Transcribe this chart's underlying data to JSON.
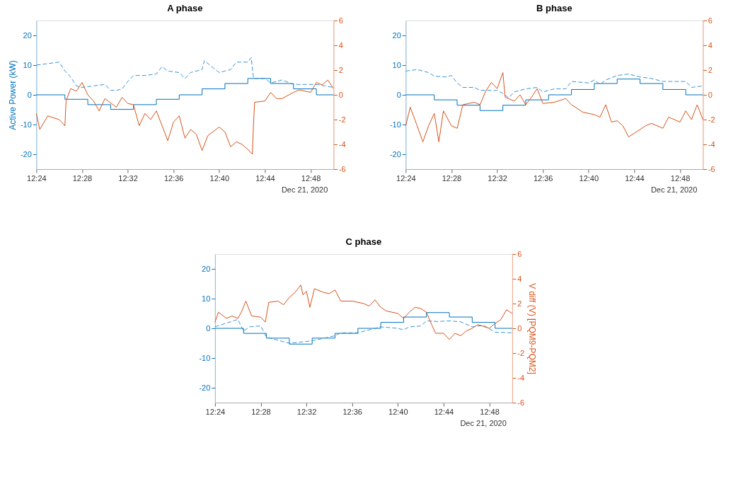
{
  "chart_data": [
    {
      "type": "line",
      "title": "A phase",
      "ylabel": "Active Power (kW)",
      "annotations": [
        "Dec 21, 2020"
      ],
      "xlim": [
        "2020-12-21T12:24",
        "2020-12-21T12:50"
      ],
      "xticks": [
        {
          "value": "2020-12-21T12:24",
          "label": "12:24"
        },
        {
          "value": "2020-12-21T12:28",
          "label": "12:28"
        },
        {
          "value": "2020-12-21T12:32",
          "label": "12:32"
        },
        {
          "value": "2020-12-21T12:36",
          "label": "12:36"
        },
        {
          "value": "2020-12-21T12:40",
          "label": "12:40"
        },
        {
          "value": "2020-12-21T12:44",
          "label": "12:44"
        },
        {
          "value": "2020-12-21T12:48",
          "label": "12:48"
        }
      ],
      "ylim": [
        -25,
        25
      ],
      "yticks": [
        -20,
        -10,
        0,
        10,
        20
      ],
      "y2lim": [
        -6,
        6
      ],
      "y2ticks": [
        -6,
        -4,
        -2,
        0,
        2,
        4,
        6
      ],
      "grid": false,
      "series": [
        {
          "type": "step",
          "color": "#0072bd",
          "line_style": "solid",
          "x": [
            "2020-12-21T12:24:00",
            "2020-12-21T12:26:30",
            "2020-12-21T12:28:30",
            "2020-12-21T12:30:30",
            "2020-12-21T12:32:30",
            "2020-12-21T12:34:30",
            "2020-12-21T12:36:30",
            "2020-12-21T12:38:30",
            "2020-12-21T12:40:30",
            "2020-12-21T12:42:30",
            "2020-12-21T12:44:30",
            "2020-12-21T12:46:30",
            "2020-12-21T12:48:30",
            "2020-12-21T12:50:00"
          ],
          "values": [
            0,
            -1.5,
            -3.3,
            -4.9,
            -3.3,
            -1.5,
            0,
            2,
            3.8,
            5.5,
            3.8,
            2,
            0,
            0
          ]
        },
        {
          "color": "#3d95d2",
          "line_style": "dashed",
          "x": [
            "2020-12-21T12:24:00",
            "2020-12-21T12:25:00",
            "2020-12-21T12:26:00",
            "2020-12-21T12:26:30",
            "2020-12-21T12:27:00",
            "2020-12-21T12:27:30",
            "2020-12-21T12:28:00",
            "2020-12-21T12:29:00",
            "2020-12-21T12:30:00",
            "2020-12-21T12:30:30",
            "2020-12-21T12:31:00",
            "2020-12-21T12:31:30",
            "2020-12-21T12:32:00",
            "2020-12-21T12:32:30",
            "2020-12-21T12:33:30",
            "2020-12-21T12:34:30",
            "2020-12-21T12:35:00",
            "2020-12-21T12:35:30",
            "2020-12-21T12:36:30",
            "2020-12-21T12:37:00",
            "2020-12-21T12:37:30",
            "2020-12-21T12:38:30",
            "2020-12-21T12:38:42",
            "2020-12-21T12:39:30",
            "2020-12-21T12:40:00",
            "2020-12-21T12:40:30",
            "2020-12-21T12:41:00",
            "2020-12-21T12:41:30",
            "2020-12-21T12:42:30",
            "2020-12-21T12:42:48",
            "2020-12-21T12:43:00",
            "2020-12-21T12:44:00",
            "2020-12-21T12:44:30",
            "2020-12-21T12:45:30",
            "2020-12-21T12:46:30",
            "2020-12-21T12:48:30",
            "2020-12-21T12:50:00"
          ],
          "values": [
            10,
            10.5,
            11,
            8,
            6,
            3,
            2.5,
            3,
            3.5,
            1.5,
            1.5,
            2,
            4.5,
            6.5,
            6.5,
            7,
            9.5,
            8,
            7.5,
            5.5,
            7.5,
            8.5,
            11.5,
            9,
            7.5,
            8,
            8.5,
            11,
            11,
            12.5,
            5.5,
            5.5,
            4,
            5,
            3.5,
            3.5,
            2.5
          ]
        },
        {
          "axis": "y2",
          "color": "#d95319",
          "line_style": "solid",
          "x": [
            "2020-12-21T12:24:00",
            "2020-12-21T12:24:18",
            "2020-12-21T12:25:00",
            "2020-12-21T12:26:00",
            "2020-12-21T12:26:30",
            "2020-12-21T12:26:36",
            "2020-12-21T12:27:00",
            "2020-12-21T12:27:30",
            "2020-12-21T12:28:00",
            "2020-12-21T12:28:30",
            "2020-12-21T12:29:00",
            "2020-12-21T12:29:30",
            "2020-12-21T12:30:00",
            "2020-12-21T12:31:00",
            "2020-12-21T12:31:30",
            "2020-12-21T12:32:00",
            "2020-12-21T12:32:30",
            "2020-12-21T12:33:00",
            "2020-12-21T12:33:30",
            "2020-12-21T12:34:00",
            "2020-12-21T12:34:30",
            "2020-12-21T12:35:00",
            "2020-12-21T12:35:30",
            "2020-12-21T12:36:00",
            "2020-12-21T12:36:30",
            "2020-12-21T12:37:00",
            "2020-12-21T12:37:30",
            "2020-12-21T12:38:00",
            "2020-12-21T12:38:30",
            "2020-12-21T12:39:00",
            "2020-12-21T12:40:00",
            "2020-12-21T12:40:30",
            "2020-12-21T12:41:00",
            "2020-12-21T12:41:30",
            "2020-12-21T12:42:00",
            "2020-12-21T12:42:30",
            "2020-12-21T12:42:54",
            "2020-12-21T12:43:00",
            "2020-12-21T12:43:06",
            "2020-12-21T12:44:00",
            "2020-12-21T12:44:30",
            "2020-12-21T12:45:00",
            "2020-12-21T12:45:30",
            "2020-12-21T12:46:30",
            "2020-12-21T12:47:00",
            "2020-12-21T12:48:00",
            "2020-12-21T12:48:30",
            "2020-12-21T12:49:00",
            "2020-12-21T12:49:30",
            "2020-12-21T12:50:00"
          ],
          "values": [
            -1.5,
            -2.8,
            -1.7,
            -2,
            -2.5,
            -0.5,
            0.5,
            0.3,
            1,
            0,
            -0.5,
            -1.3,
            -0.3,
            -1,
            -0.2,
            -0.7,
            -0.8,
            -2.5,
            -1.5,
            -2,
            -1.3,
            -2.5,
            -3.7,
            -2.2,
            -1.7,
            -3.5,
            -2.8,
            -3.2,
            -4.5,
            -3.3,
            -2.6,
            -3,
            -4.2,
            -3.8,
            -4,
            -4.4,
            -4.8,
            -2.3,
            -0.6,
            -0.5,
            0.2,
            -0.3,
            -0.3,
            0.2,
            0.4,
            0.2,
            1,
            0.8,
            1.2,
            0.5
          ]
        }
      ]
    },
    {
      "type": "line",
      "title": "B phase",
      "annotations": [
        "Dec 21, 2020"
      ],
      "xlim": [
        "2020-12-21T12:24",
        "2020-12-21T12:50"
      ],
      "xticks": [
        {
          "value": "2020-12-21T12:24",
          "label": "12:24"
        },
        {
          "value": "2020-12-21T12:28",
          "label": "12:28"
        },
        {
          "value": "2020-12-21T12:32",
          "label": "12:32"
        },
        {
          "value": "2020-12-21T12:36",
          "label": "12:36"
        },
        {
          "value": "2020-12-21T12:40",
          "label": "12:40"
        },
        {
          "value": "2020-12-21T12:44",
          "label": "12:44"
        },
        {
          "value": "2020-12-21T12:48",
          "label": "12:48"
        }
      ],
      "ylim": [
        -25,
        25
      ],
      "yticks": [
        -20,
        -10,
        0,
        10,
        20
      ],
      "y2lim": [
        -6,
        6
      ],
      "y2ticks": [
        -6,
        -4,
        -2,
        0,
        2,
        4,
        6
      ],
      "grid": false,
      "series": [
        {
          "type": "step",
          "color": "#0072bd",
          "line_style": "solid",
          "x": [
            "2020-12-21T12:24:00",
            "2020-12-21T12:26:30",
            "2020-12-21T12:28:30",
            "2020-12-21T12:30:30",
            "2020-12-21T12:32:30",
            "2020-12-21T12:34:30",
            "2020-12-21T12:36:30",
            "2020-12-21T12:38:30",
            "2020-12-21T12:40:30",
            "2020-12-21T12:42:30",
            "2020-12-21T12:44:30",
            "2020-12-21T12:46:30",
            "2020-12-21T12:48:30",
            "2020-12-21T12:50:00"
          ],
          "values": [
            0,
            -1.7,
            -3.5,
            -5.3,
            -3.5,
            -1.7,
            0,
            1.8,
            3.8,
            5.3,
            3.8,
            1.8,
            0,
            0
          ]
        },
        {
          "color": "#3d95d2",
          "line_style": "dashed",
          "x": [
            "2020-12-21T12:24:00",
            "2020-12-21T12:25:00",
            "2020-12-21T12:26:00",
            "2020-12-21T12:26:30",
            "2020-12-21T12:27:30",
            "2020-12-21T12:28:00",
            "2020-12-21T12:28:30",
            "2020-12-21T12:29:00",
            "2020-12-21T12:30:00",
            "2020-12-21T12:30:30",
            "2020-12-21T12:32:00",
            "2020-12-21T12:32:30",
            "2020-12-21T12:33:00",
            "2020-12-21T12:33:30",
            "2020-12-21T12:34:30",
            "2020-12-21T12:35:30",
            "2020-12-21T12:36:00",
            "2020-12-21T12:37:00",
            "2020-12-21T12:38:00",
            "2020-12-21T12:38:30",
            "2020-12-21T12:40:00",
            "2020-12-21T12:40:30",
            "2020-12-21T12:41:00",
            "2020-12-21T12:41:30",
            "2020-12-21T12:42:30",
            "2020-12-21T12:43:30",
            "2020-12-21T12:44:30",
            "2020-12-21T12:45:30",
            "2020-12-21T12:46:30",
            "2020-12-21T12:48:30",
            "2020-12-21T12:49:00",
            "2020-12-21T12:50:00"
          ],
          "values": [
            8,
            8.5,
            7.5,
            6.3,
            6,
            6.5,
            4,
            2.5,
            2.5,
            1.5,
            1.5,
            0.5,
            -1,
            1,
            2,
            2.5,
            1,
            2,
            2,
            4.5,
            4,
            5,
            3.5,
            5,
            6.5,
            7,
            6,
            5.5,
            4.5,
            4.5,
            2.5,
            3
          ]
        },
        {
          "axis": "y2",
          "color": "#d95319",
          "line_style": "solid",
          "x": [
            "2020-12-21T12:24:00",
            "2020-12-21T12:24:24",
            "2020-12-21T12:25:00",
            "2020-12-21T12:25:30",
            "2020-12-21T12:26:00",
            "2020-12-21T12:26:30",
            "2020-12-21T12:26:54",
            "2020-12-21T12:27:18",
            "2020-12-21T12:28:00",
            "2020-12-21T12:28:30",
            "2020-12-21T12:29:00",
            "2020-12-21T12:30:00",
            "2020-12-21T12:30:30",
            "2020-12-21T12:31:00",
            "2020-12-21T12:31:30",
            "2020-12-21T12:32:00",
            "2020-12-21T12:32:30",
            "2020-12-21T12:32:42",
            "2020-12-21T12:33:30",
            "2020-12-21T12:34:00",
            "2020-12-21T12:34:30",
            "2020-12-21T12:35:00",
            "2020-12-21T12:35:30",
            "2020-12-21T12:36:00",
            "2020-12-21T12:37:00",
            "2020-12-21T12:38:00",
            "2020-12-21T12:38:30",
            "2020-12-21T12:39:30",
            "2020-12-21T12:40:30",
            "2020-12-21T12:41:00",
            "2020-12-21T12:41:30",
            "2020-12-21T12:42:00",
            "2020-12-21T12:42:30",
            "2020-12-21T12:43:00",
            "2020-12-21T12:43:30",
            "2020-12-21T12:44:00",
            "2020-12-21T12:45:00",
            "2020-12-21T12:45:30",
            "2020-12-21T12:46:30",
            "2020-12-21T12:47:00",
            "2020-12-21T12:48:00",
            "2020-12-21T12:48:30",
            "2020-12-21T12:49:00",
            "2020-12-21T12:49:30",
            "2020-12-21T12:50:00"
          ],
          "values": [
            -2.5,
            -1,
            -2.5,
            -3.8,
            -2.5,
            -1.5,
            -3.8,
            -1.3,
            -2.5,
            -2.7,
            -0.8,
            -0.6,
            -0.8,
            0.3,
            1,
            0.5,
            1.8,
            -0.2,
            -0.5,
            0,
            -0.8,
            -0.2,
            0.5,
            -0.7,
            -0.6,
            -0.3,
            -0.8,
            -1.4,
            -1.6,
            -1.8,
            -0.8,
            -2.2,
            -2.1,
            -2.5,
            -3.4,
            -3.1,
            -2.5,
            -2.3,
            -2.7,
            -1.8,
            -2.2,
            -1.3,
            -2,
            -0.8,
            -2
          ]
        }
      ]
    },
    {
      "type": "line",
      "title": "C phase",
      "y2label": "V diff (V) [PQM9-PQM2]",
      "annotations": [
        "Dec 21, 2020"
      ],
      "xlim": [
        "2020-12-21T12:24",
        "2020-12-21T12:50"
      ],
      "xticks": [
        {
          "value": "2020-12-21T12:24",
          "label": "12:24"
        },
        {
          "value": "2020-12-21T12:28",
          "label": "12:28"
        },
        {
          "value": "2020-12-21T12:32",
          "label": "12:32"
        },
        {
          "value": "2020-12-21T12:36",
          "label": "12:36"
        },
        {
          "value": "2020-12-21T12:40",
          "label": "12:40"
        },
        {
          "value": "2020-12-21T12:44",
          "label": "12:44"
        },
        {
          "value": "2020-12-21T12:48",
          "label": "12:48"
        }
      ],
      "ylim": [
        -25,
        25
      ],
      "yticks": [
        -20,
        -10,
        0,
        10,
        20
      ],
      "y2lim": [
        -6,
        6
      ],
      "y2ticks": [
        -6,
        -4,
        -2,
        0,
        2,
        4,
        6
      ],
      "grid": false,
      "series": [
        {
          "type": "step",
          "color": "#0072bd",
          "line_style": "solid",
          "x": [
            "2020-12-21T12:24:00",
            "2020-12-21T12:26:30",
            "2020-12-21T12:28:30",
            "2020-12-21T12:30:30",
            "2020-12-21T12:32:30",
            "2020-12-21T12:34:30",
            "2020-12-21T12:36:30",
            "2020-12-21T12:38:30",
            "2020-12-21T12:40:30",
            "2020-12-21T12:42:30",
            "2020-12-21T12:44:30",
            "2020-12-21T12:46:30",
            "2020-12-21T12:48:30",
            "2020-12-21T12:50:00"
          ],
          "values": [
            0,
            -1.7,
            -3.3,
            -5.3,
            -3.3,
            -1.7,
            0,
            2,
            3.8,
            5.3,
            3.8,
            2,
            0,
            0
          ]
        },
        {
          "color": "#3d95d2",
          "line_style": "dashed",
          "x": [
            "2020-12-21T12:24:00",
            "2020-12-21T12:26:00",
            "2020-12-21T12:26:30",
            "2020-12-21T12:27:00",
            "2020-12-21T12:28:00",
            "2020-12-21T12:28:30",
            "2020-12-21T12:30:30",
            "2020-12-21T12:32:30",
            "2020-12-21T12:34:30",
            "2020-12-21T12:35:00",
            "2020-12-21T12:36:30",
            "2020-12-21T12:38:30",
            "2020-12-21T12:40:00",
            "2020-12-21T12:40:30",
            "2020-12-21T12:41:00",
            "2020-12-21T12:42:00",
            "2020-12-21T12:42:30",
            "2020-12-21T12:43:30",
            "2020-12-21T12:44:30",
            "2020-12-21T12:45:30",
            "2020-12-21T12:46:30",
            "2020-12-21T12:47:30",
            "2020-12-21T12:48:30",
            "2020-12-21T12:50:00"
          ],
          "values": [
            0.5,
            3,
            -1,
            0.5,
            0.8,
            -3,
            -5,
            -4.2,
            -2.5,
            -1.5,
            -1.5,
            0.5,
            0,
            -0.5,
            0.5,
            0.8,
            2.5,
            2.3,
            2.5,
            2.2,
            0.5,
            1,
            -1.3,
            -1.5
          ]
        },
        {
          "axis": "y2",
          "color": "#d95319",
          "line_style": "solid",
          "x": [
            "2020-12-21T12:24:00",
            "2020-12-21T12:24:18",
            "2020-12-21T12:25:00",
            "2020-12-21T12:25:30",
            "2020-12-21T12:26:00",
            "2020-12-21T12:26:18",
            "2020-12-21T12:26:42",
            "2020-12-21T12:27:12",
            "2020-12-21T12:28:00",
            "2020-12-21T12:28:24",
            "2020-12-21T12:28:42",
            "2020-12-21T12:29:30",
            "2020-12-21T12:30:00",
            "2020-12-21T12:30:30",
            "2020-12-21T12:31:00",
            "2020-12-21T12:31:30",
            "2020-12-21T12:31:42",
            "2020-12-21T12:32:00",
            "2020-12-21T12:32:18",
            "2020-12-21T12:32:42",
            "2020-12-21T12:33:30",
            "2020-12-21T12:34:00",
            "2020-12-21T12:34:30",
            "2020-12-21T12:35:00",
            "2020-12-21T12:36:00",
            "2020-12-21T12:37:00",
            "2020-12-21T12:37:30",
            "2020-12-21T12:38:00",
            "2020-12-21T12:38:30",
            "2020-12-21T12:39:00",
            "2020-12-21T12:40:00",
            "2020-12-21T12:40:30",
            "2020-12-21T12:41:00",
            "2020-12-21T12:41:30",
            "2020-12-21T12:42:00",
            "2020-12-21T12:42:30",
            "2020-12-21T12:43:00",
            "2020-12-21T12:43:18",
            "2020-12-21T12:44:00",
            "2020-12-21T12:44:30",
            "2020-12-21T12:45:00",
            "2020-12-21T12:45:30",
            "2020-12-21T12:46:00",
            "2020-12-21T12:46:30",
            "2020-12-21T12:47:00",
            "2020-12-21T12:48:00",
            "2020-12-21T12:48:30",
            "2020-12-21T12:49:00",
            "2020-12-21T12:49:30",
            "2020-12-21T12:50:00"
          ],
          "values": [
            0.5,
            1.3,
            0.8,
            1,
            0.8,
            1.3,
            2.2,
            1,
            0.9,
            0.5,
            2.1,
            2.2,
            1.9,
            2.5,
            2.9,
            3.5,
            2.7,
            3,
            1.7,
            3.2,
            2.9,
            2.8,
            3.1,
            2.2,
            2.2,
            2,
            1.8,
            2.3,
            1.7,
            1.4,
            1.2,
            0.8,
            1.3,
            1.7,
            1.6,
            1.3,
            0.2,
            -0.4,
            -0.4,
            -0.9,
            -0.4,
            -0.6,
            -0.2,
            0,
            0.3,
            0,
            0.4,
            0.7,
            1.5,
            1.2
          ]
        }
      ]
    }
  ]
}
